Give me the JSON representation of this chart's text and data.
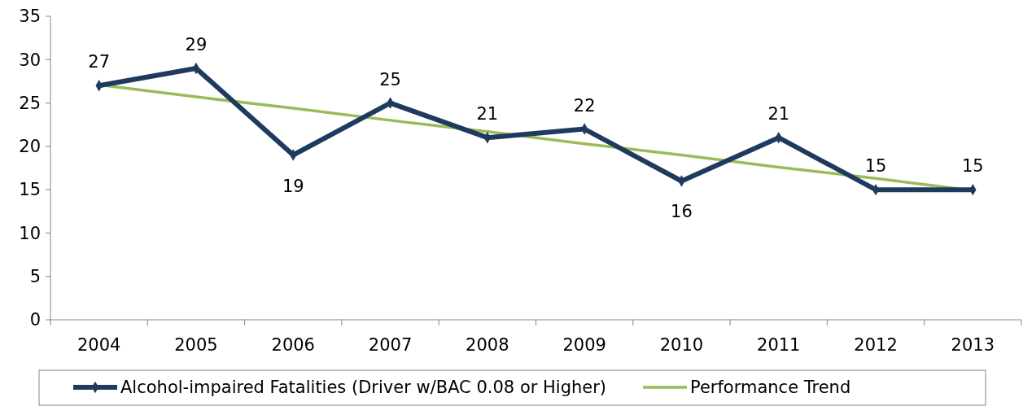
{
  "chart_data": {
    "type": "line",
    "categories": [
      "2004",
      "2005",
      "2006",
      "2007",
      "2008",
      "2009",
      "2010",
      "2011",
      "2012",
      "2013"
    ],
    "series": [
      {
        "name": "Alcohol-impaired Fatalities (Driver w/BAC 0.08 or Higher)",
        "color": "#1f3a5f",
        "values": [
          27,
          29,
          19,
          25,
          21,
          22,
          16,
          21,
          15,
          15
        ],
        "value_labels": [
          "27",
          "29",
          "19",
          "25",
          "21",
          "22",
          "16",
          "21",
          "15",
          "15"
        ],
        "marker": "diamond"
      },
      {
        "name": "Performance Trend",
        "type": "line",
        "color": "#9bbb59",
        "values": [
          27.1,
          25.7,
          24.4,
          23.0,
          21.7,
          20.3,
          19.0,
          17.6,
          16.3,
          14.9
        ],
        "marker": "none"
      }
    ],
    "ylim": [
      0,
      35
    ],
    "yticks": [
      0,
      5,
      10,
      15,
      20,
      25,
      30,
      35
    ],
    "grid": false,
    "legend": "bottom"
  }
}
